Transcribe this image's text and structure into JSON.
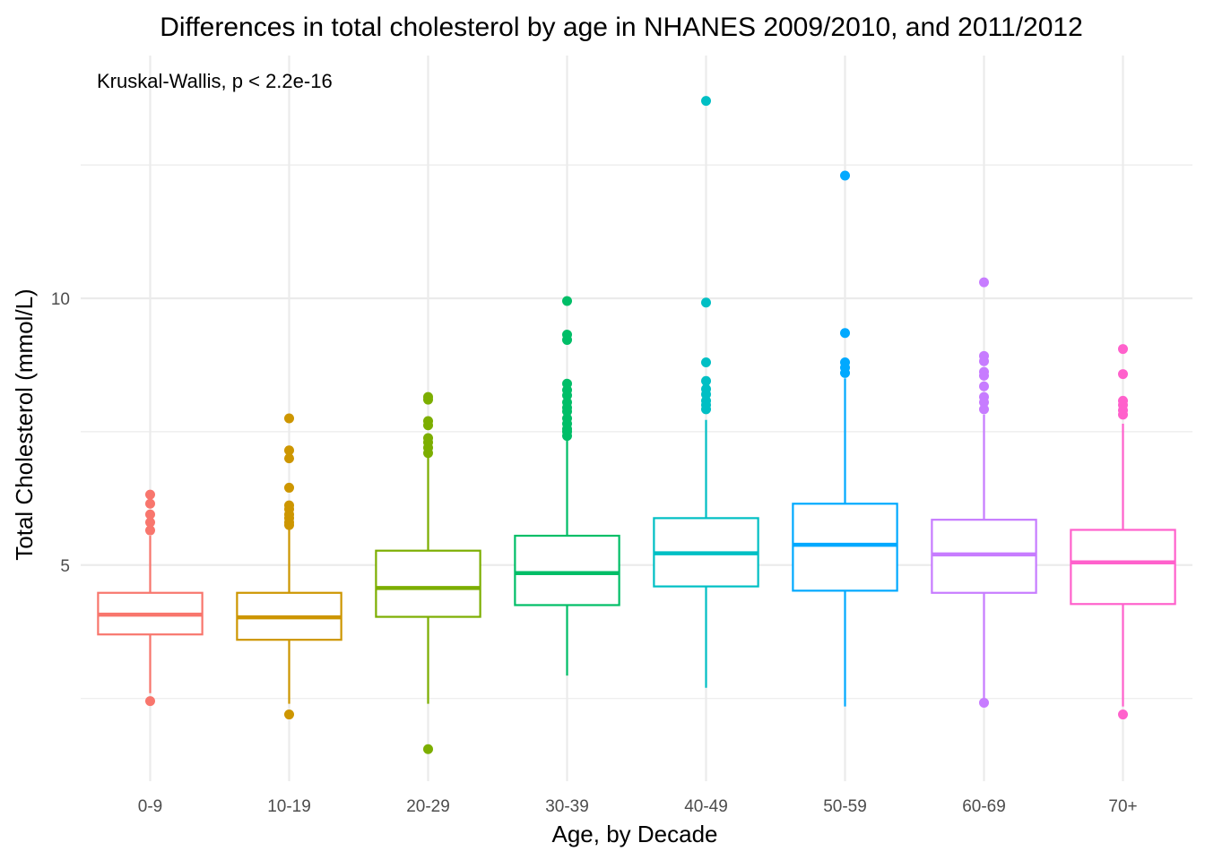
{
  "chart_data": {
    "type": "box",
    "title": "Differences in total cholesterol by age in NHANES 2009/2010, and 2011/2012",
    "annotation": "Kruskal-Wallis, p < 2.2e-16",
    "xlabel": "Age, by Decade",
    "ylabel": "Total Cholesterol (mmol/L)",
    "ylim": [
      0.95,
      14.55
    ],
    "yticks": [
      5,
      10
    ],
    "grid": true,
    "legend": "none",
    "categories": [
      "0-9",
      "10-19",
      "20-29",
      "30-39",
      "40-49",
      "50-59",
      "60-69",
      "70+"
    ],
    "colors": [
      "#F8766D",
      "#CD9600",
      "#7CAE00",
      "#00BE67",
      "#00BFC4",
      "#00A9FF",
      "#C77CFF",
      "#FF61CC"
    ],
    "boxes": [
      {
        "category": "0-9",
        "whisker_low": 2.6,
        "q1": 3.7,
        "median": 4.07,
        "q3": 4.48,
        "whisker_high": 5.55,
        "outliers": [
          2.45,
          5.65,
          5.8,
          5.95,
          6.15,
          6.32
        ]
      },
      {
        "category": "10-19",
        "whisker_low": 2.4,
        "q1": 3.6,
        "median": 4.02,
        "q3": 4.48,
        "whisker_high": 5.7,
        "outliers": [
          2.2,
          5.75,
          5.8,
          5.88,
          5.95,
          6.05,
          6.12,
          6.45,
          7.0,
          7.15,
          7.75
        ]
      },
      {
        "category": "20-29",
        "whisker_low": 2.4,
        "q1": 4.03,
        "median": 4.57,
        "q3": 5.27,
        "whisker_high": 7.05,
        "outliers": [
          1.55,
          7.1,
          7.2,
          7.3,
          7.38,
          7.62,
          7.7,
          8.1,
          8.15
        ]
      },
      {
        "category": "30-39",
        "whisker_low": 2.93,
        "q1": 4.25,
        "median": 4.85,
        "q3": 5.55,
        "whisker_high": 7.35,
        "outliers": [
          7.42,
          7.5,
          7.55,
          7.65,
          7.75,
          7.88,
          7.95,
          8.05,
          8.18,
          8.28,
          8.4,
          9.22,
          9.32,
          9.95
        ]
      },
      {
        "category": "40-49",
        "whisker_low": 2.7,
        "q1": 4.6,
        "median": 5.22,
        "q3": 5.88,
        "whisker_high": 7.72,
        "outliers": [
          7.92,
          8.0,
          8.08,
          8.2,
          8.3,
          8.45,
          8.8,
          9.92,
          13.7
        ]
      },
      {
        "category": "50-59",
        "whisker_low": 2.35,
        "q1": 4.52,
        "median": 5.38,
        "q3": 6.15,
        "whisker_high": 8.5,
        "outliers": [
          8.6,
          8.7,
          8.8,
          9.35,
          12.3
        ]
      },
      {
        "category": "60-69",
        "whisker_low": 2.5,
        "q1": 4.48,
        "median": 5.2,
        "q3": 5.85,
        "whisker_high": 7.82,
        "outliers": [
          2.42,
          7.92,
          8.05,
          8.15,
          8.35,
          8.55,
          8.62,
          8.82,
          8.92,
          10.3
        ]
      },
      {
        "category": "70+",
        "whisker_low": 2.35,
        "q1": 4.27,
        "median": 5.05,
        "q3": 5.66,
        "whisker_high": 7.65,
        "outliers": [
          2.2,
          7.82,
          7.9,
          8.0,
          8.08,
          8.58,
          9.05
        ]
      }
    ]
  }
}
